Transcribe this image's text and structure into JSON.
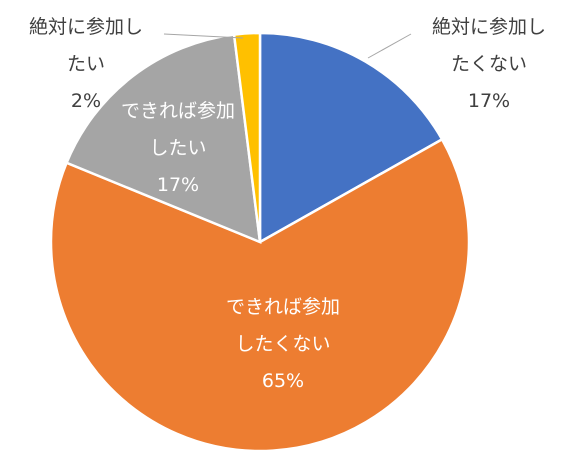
{
  "chart_data": {
    "type": "pie",
    "title": "",
    "start_angle_deg": 0,
    "direction": "clockwise",
    "slices": [
      {
        "label_lines": [
          "絶対に参加し",
          "たくない"
        ],
        "value": 17,
        "percent_label": "17%",
        "color": "#4472c4",
        "label_color": "#404040"
      },
      {
        "label_lines": [
          "できれば参加",
          "したくない"
        ],
        "value": 65,
        "percent_label": "65%",
        "color": "#ed7d31",
        "label_color": "#ffffff"
      },
      {
        "label_lines": [
          "できれば参加",
          "したい"
        ],
        "value": 17,
        "percent_label": "17%",
        "color": "#a5a5a5",
        "label_color": "#ffffff"
      },
      {
        "label_lines": [
          "絶対に参加し",
          "たい"
        ],
        "value": 2,
        "percent_label": "2%",
        "color": "#ffc000",
        "label_color": "#404040"
      }
    ]
  }
}
